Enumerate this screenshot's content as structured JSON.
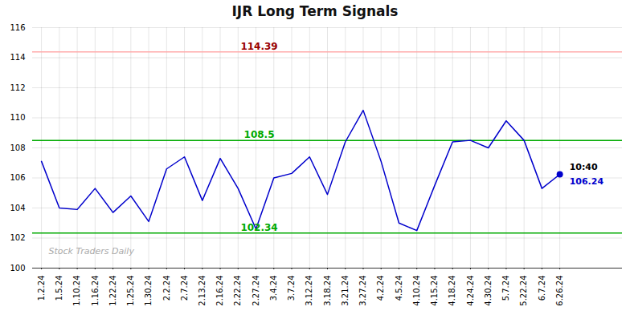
{
  "chart_data": {
    "type": "line",
    "title": "IJR Long Term Signals",
    "categories": [
      "1.2.24",
      "1.5.24",
      "1.10.24",
      "1.16.24",
      "1.22.24",
      "1.25.24",
      "1.30.24",
      "2.2.24",
      "2.7.24",
      "2.13.24",
      "2.16.24",
      "2.22.24",
      "2.27.24",
      "3.4.24",
      "3.7.24",
      "3.12.24",
      "3.18.24",
      "3.21.24",
      "3.27.24",
      "4.2.24",
      "4.5.24",
      "4.10.24",
      "4.15.24",
      "4.18.24",
      "4.24.24",
      "4.30.24",
      "5.7.24",
      "5.22.24",
      "6.7.24",
      "6.26.24"
    ],
    "values": [
      107.1,
      104.0,
      103.9,
      105.3,
      103.7,
      104.8,
      103.1,
      106.6,
      107.4,
      104.5,
      107.3,
      105.3,
      102.6,
      106.0,
      106.3,
      107.4,
      104.9,
      108.4,
      110.5,
      107.1,
      103.0,
      102.5,
      105.5,
      108.4,
      108.5,
      108.0,
      109.8,
      108.5,
      105.3,
      106.24
    ],
    "color": "#0000cc",
    "ylim": [
      100,
      116
    ],
    "yticks": [
      100,
      102,
      104,
      106,
      108,
      110,
      112,
      114,
      116
    ],
    "grid": true,
    "hlines": [
      {
        "value": 114.39,
        "label": "114.39",
        "color": "#ffaaaa",
        "label_color": "#990000"
      },
      {
        "value": 108.5,
        "label": "108.5",
        "color": "#00aa00",
        "label_color": "#00aa00"
      },
      {
        "value": 102.34,
        "label": "102.34",
        "color": "#00aa00",
        "label_color": "#00aa00"
      }
    ],
    "annotations": [
      {
        "x": "6.26.24",
        "y": 106.24,
        "text": "10:40",
        "color": "#000000"
      },
      {
        "x": "6.26.24",
        "y": 106.24,
        "text": "106.24",
        "color": "#0000cc"
      }
    ],
    "watermark": {
      "text": "Stock Traders Daily",
      "color": "#aaaaaa"
    }
  }
}
